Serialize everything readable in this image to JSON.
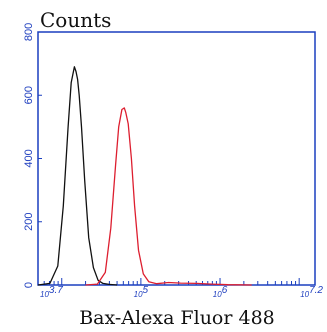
{
  "chart_data": {
    "type": "line",
    "ylabel": "Counts",
    "xlabel": "Bax-Alexa Fluor 488",
    "x_scale": "log",
    "xlim": [
      3.7,
      7.2
    ],
    "ylim": [
      0,
      800
    ],
    "x_ticks": [
      {
        "value": 3.7,
        "label": "10^3.7"
      },
      {
        "value": 5,
        "label": "10^5"
      },
      {
        "value": 6,
        "label": "10^6"
      },
      {
        "value": 7.2,
        "label": "10^7.2"
      }
    ],
    "y_ticks": [
      {
        "value": 0,
        "label": "0"
      },
      {
        "value": 200,
        "label": "200"
      },
      {
        "value": 400,
        "label": "400"
      },
      {
        "value": 600,
        "label": "600"
      },
      {
        "value": 800,
        "label": "800"
      }
    ],
    "series": [
      {
        "color": "#111111",
        "x": [
          3.7,
          3.85,
          3.95,
          4.02,
          4.08,
          4.12,
          4.16,
          4.18,
          4.2,
          4.22,
          4.25,
          4.29,
          4.34,
          4.4,
          4.46,
          4.52,
          4.6,
          4.7
        ],
        "y": [
          0,
          5,
          60,
          250,
          500,
          640,
          690,
          675,
          650,
          600,
          500,
          330,
          150,
          55,
          15,
          5,
          2,
          0
        ]
      },
      {
        "color": "#dd1e2f",
        "x": [
          4.3,
          4.45,
          4.55,
          4.62,
          4.68,
          4.72,
          4.76,
          4.79,
          4.81,
          4.84,
          4.88,
          4.92,
          4.97,
          5.03,
          5.1,
          5.2,
          5.35,
          5.5,
          5.7,
          5.9,
          6.1,
          6.4
        ],
        "y": [
          0,
          3,
          40,
          180,
          380,
          500,
          555,
          560,
          545,
          510,
          400,
          250,
          110,
          35,
          10,
          4,
          8,
          6,
          5,
          3,
          1,
          0
        ]
      }
    ]
  }
}
